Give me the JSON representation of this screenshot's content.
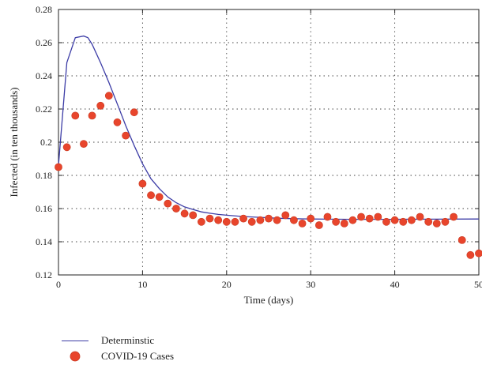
{
  "chart_data": {
    "type": "scatter",
    "xlabel": "Time (days)",
    "ylabel": "Infected (in ten thousands)",
    "xlim": [
      0,
      50
    ],
    "ylim": [
      0.12,
      0.28
    ],
    "xticks": [
      0,
      10,
      20,
      30,
      40,
      50
    ],
    "yticks": [
      0.12,
      0.14,
      0.16,
      0.18,
      0.2,
      0.22,
      0.24,
      0.26,
      0.28
    ],
    "ytick_labels": [
      "0.12",
      "0.14",
      "0.16",
      "0.18",
      "0.2",
      "0.22",
      "0.24",
      "0.26",
      "0.28"
    ],
    "grid": true,
    "legend_position": "bottom-left, below plot",
    "series": [
      {
        "name": "Determinstic",
        "kind": "line",
        "color": "#3c3ca6",
        "x": [
          0,
          1,
          2,
          3,
          3.5,
          4,
          5,
          6,
          7,
          8,
          9,
          10,
          11,
          12,
          13,
          14,
          15,
          16,
          17,
          18,
          19,
          20,
          22,
          24,
          26,
          28,
          30,
          32,
          35,
          38,
          40,
          45,
          50
        ],
        "y": [
          0.186,
          0.248,
          0.263,
          0.264,
          0.263,
          0.259,
          0.248,
          0.236,
          0.223,
          0.21,
          0.198,
          0.187,
          0.178,
          0.172,
          0.167,
          0.1635,
          0.161,
          0.1595,
          0.158,
          0.1572,
          0.1565,
          0.156,
          0.1552,
          0.1547,
          0.1542,
          0.1539,
          0.1537,
          0.1536,
          0.1535,
          0.1535,
          0.1535,
          0.1536,
          0.1537
        ]
      },
      {
        "name": "COVID-19 Cases",
        "kind": "points",
        "color": "#e8452c",
        "x": [
          0,
          1,
          2,
          3,
          4,
          5,
          6,
          7,
          8,
          9,
          10,
          11,
          12,
          13,
          14,
          15,
          16,
          17,
          18,
          19,
          20,
          21,
          22,
          23,
          24,
          25,
          26,
          27,
          28,
          29,
          30,
          31,
          32,
          33,
          34,
          35,
          36,
          37,
          38,
          39,
          40,
          41,
          42,
          43,
          44,
          45,
          46,
          47,
          48,
          49,
          50
        ],
        "y": [
          0.185,
          0.197,
          0.216,
          0.199,
          0.216,
          0.222,
          0.228,
          0.212,
          0.204,
          0.218,
          0.175,
          0.168,
          0.167,
          0.163,
          0.16,
          0.157,
          0.156,
          0.152,
          0.154,
          0.153,
          0.152,
          0.152,
          0.154,
          0.152,
          0.153,
          0.154,
          0.153,
          0.156,
          0.153,
          0.151,
          0.154,
          0.15,
          0.155,
          0.152,
          0.151,
          0.153,
          0.155,
          0.154,
          0.155,
          0.152,
          0.153,
          0.152,
          0.153,
          0.155,
          0.152,
          0.151,
          0.152,
          0.155,
          0.141,
          0.132,
          0.133
        ]
      }
    ]
  },
  "legend": {
    "line_label": "Determinstic",
    "points_label": "COVID-19 Cases"
  }
}
